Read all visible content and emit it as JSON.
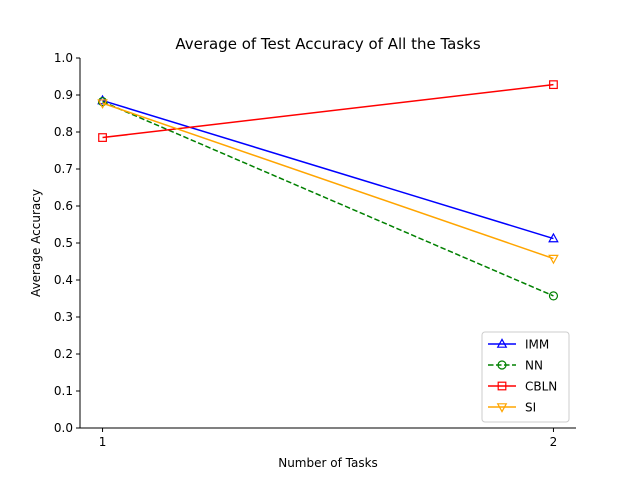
{
  "chart_data": {
    "type": "line",
    "title": "Average of Test Accuracy of All the Tasks",
    "xlabel": "Number of Tasks",
    "ylabel": "Average Accuracy",
    "x": [
      1,
      2
    ],
    "xticks": [
      "1",
      "2"
    ],
    "xlim": [
      0.95,
      2.05
    ],
    "ylim": [
      0.0,
      1.0
    ],
    "yticks": [
      "0.0",
      "0.1",
      "0.2",
      "0.3",
      "0.4",
      "0.5",
      "0.6",
      "0.7",
      "0.8",
      "0.9",
      "1.0"
    ],
    "grid": false,
    "legend_position": "lower-right",
    "series": [
      {
        "name": "IMM",
        "values": [
          0.885,
          0.512
        ],
        "color": "#0000ff",
        "linestyle": "solid",
        "marker": "triangle-up-open"
      },
      {
        "name": "NN",
        "values": [
          0.882,
          0.357
        ],
        "color": "#008000",
        "linestyle": "dashed",
        "marker": "circle-open"
      },
      {
        "name": "CBLN",
        "values": [
          0.785,
          0.928
        ],
        "color": "#ff0000",
        "linestyle": "solid",
        "marker": "square-open"
      },
      {
        "name": "SI",
        "values": [
          0.878,
          0.458
        ],
        "color": "#ffa500",
        "linestyle": "solid",
        "marker": "triangle-down-open"
      }
    ]
  }
}
